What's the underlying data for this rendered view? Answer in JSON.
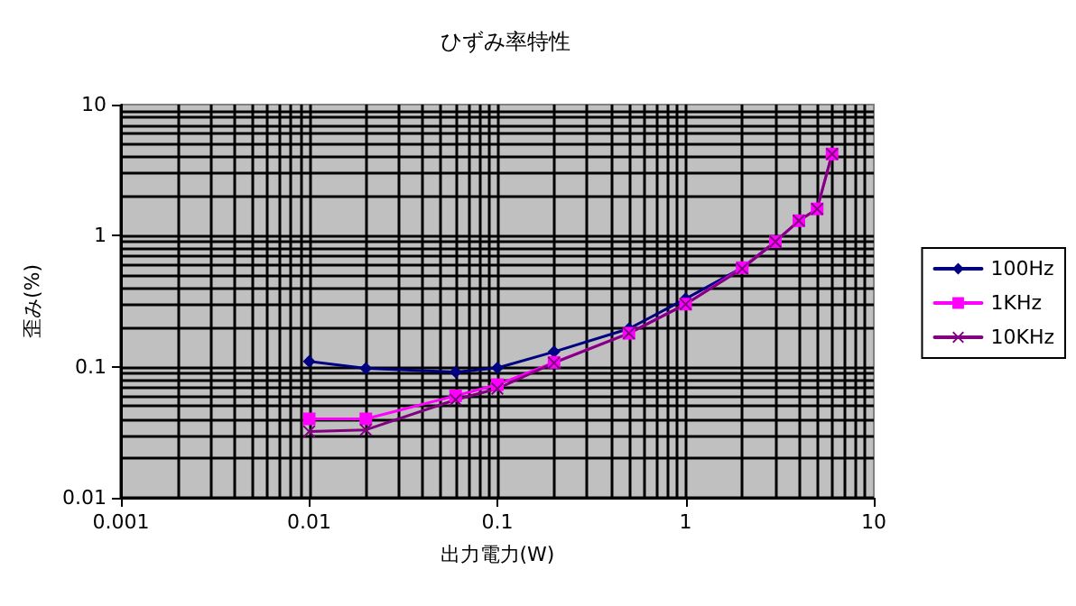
{
  "chart_data": {
    "type": "line",
    "title": "ひずみ率特性",
    "xlabel": "出力電力(W)",
    "ylabel": "歪み(%)",
    "log": "xy",
    "xlim": [
      0.001,
      10
    ],
    "xticks": [
      0.001,
      0.01,
      0.1,
      1,
      10
    ],
    "ylim": [
      0.01,
      10
    ],
    "yticks": [
      0.01,
      0.1,
      1,
      10
    ],
    "grid": true,
    "legend": "right",
    "line_style": "solid",
    "x": [
      0.01,
      0.02,
      0.06,
      0.1,
      0.2,
      0.5,
      1,
      2,
      3,
      4,
      5,
      6
    ],
    "series": [
      {
        "name": "100Hz",
        "color": "#000080",
        "marker": "diamond",
        "values": [
          0.11,
          0.097,
          0.091,
          0.098,
          0.13,
          0.195,
          0.33,
          0.57,
          0.9,
          null,
          null,
          null
        ]
      },
      {
        "name": "1KHz",
        "color": "#ff00ff",
        "marker": "square",
        "values": [
          0.04,
          0.04,
          0.06,
          0.073,
          0.108,
          0.18,
          0.3,
          0.57,
          0.9,
          1.3,
          1.6,
          4.2
        ]
      },
      {
        "name": "10KHz",
        "color": "#800080",
        "marker": "cross",
        "values": [
          0.032,
          0.033,
          0.056,
          0.068,
          0.107,
          0.18,
          0.3,
          0.56,
          0.9,
          1.3,
          1.6,
          4.2
        ]
      }
    ]
  }
}
